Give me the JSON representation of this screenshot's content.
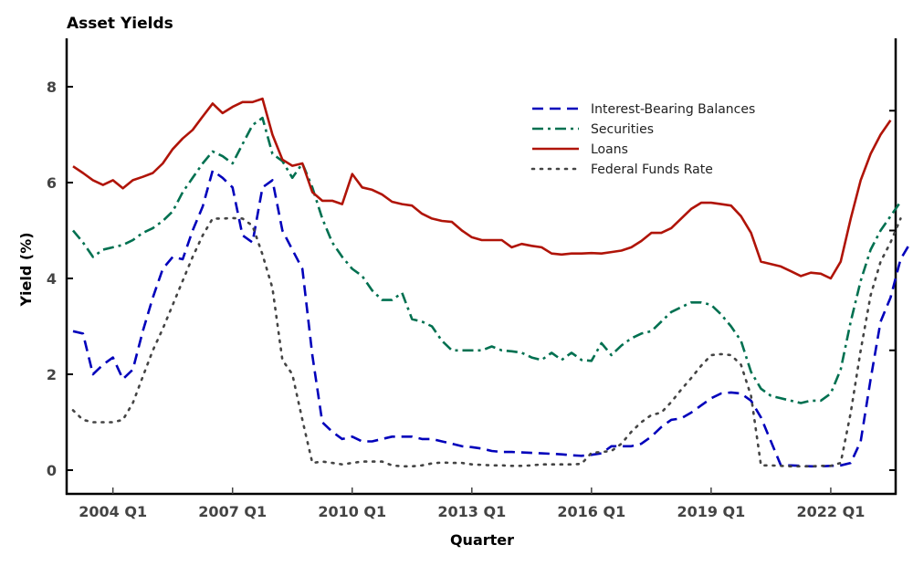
{
  "chart_data": {
    "type": "line",
    "title": "Asset Yields",
    "xlabel": "Quarter",
    "ylabel": "Yield (%)",
    "ylim": [
      -0.5,
      9
    ],
    "yticks": [
      0,
      2,
      4,
      6,
      8
    ],
    "right_axis_ticks": [
      0,
      2.5,
      5,
      7.5
    ],
    "x_start": "2003 Q1",
    "xtick_labels": [
      "2004 Q1",
      "2007 Q1",
      "2010 Q1",
      "2013 Q1",
      "2016 Q1",
      "2019 Q1",
      "2022 Q1"
    ],
    "xtick_index": [
      4,
      16,
      28,
      40,
      52,
      64,
      76
    ],
    "grid": false,
    "legend_position": "top-right",
    "series": [
      {
        "name": "Interest-Bearing Balances",
        "color": "#0000bb",
        "style": "dashed",
        "values": [
          2.9,
          2.85,
          2.0,
          2.2,
          2.35,
          1.9,
          2.1,
          2.9,
          3.6,
          4.2,
          4.45,
          4.4,
          5.0,
          5.5,
          6.25,
          6.1,
          5.9,
          4.9,
          4.75,
          5.9,
          6.05,
          5.0,
          4.6,
          4.2,
          2.4,
          1.0,
          0.8,
          0.65,
          0.7,
          0.6,
          0.6,
          0.65,
          0.7,
          0.7,
          0.7,
          0.65,
          0.65,
          0.6,
          0.55,
          0.5,
          0.48,
          0.45,
          0.4,
          0.38,
          0.38,
          0.37,
          0.36,
          0.35,
          0.34,
          0.33,
          0.31,
          0.3,
          0.32,
          0.35,
          0.5,
          0.5,
          0.5,
          0.55,
          0.7,
          0.9,
          1.05,
          1.08,
          1.2,
          1.35,
          1.5,
          1.6,
          1.62,
          1.6,
          1.45,
          1.1,
          0.6,
          0.1,
          0.1,
          0.09,
          0.08,
          0.08,
          0.09,
          0.1,
          0.15,
          0.6,
          1.9,
          3.1,
          3.6,
          4.4,
          4.75
        ]
      },
      {
        "name": "Securities",
        "color": "#007050",
        "style": "dashdot",
        "values": [
          5.0,
          4.75,
          4.45,
          4.6,
          4.65,
          4.7,
          4.8,
          4.95,
          5.05,
          5.2,
          5.4,
          5.8,
          6.1,
          6.4,
          6.65,
          6.55,
          6.4,
          6.8,
          7.2,
          7.35,
          6.6,
          6.45,
          6.1,
          6.4,
          5.9,
          5.25,
          4.75,
          4.45,
          4.2,
          4.05,
          3.75,
          3.55,
          3.55,
          3.7,
          3.15,
          3.1,
          3.0,
          2.7,
          2.5,
          2.5,
          2.5,
          2.5,
          2.58,
          2.5,
          2.48,
          2.45,
          2.35,
          2.3,
          2.45,
          2.3,
          2.45,
          2.3,
          2.28,
          2.65,
          2.4,
          2.6,
          2.75,
          2.85,
          2.9,
          3.1,
          3.3,
          3.4,
          3.5,
          3.5,
          3.45,
          3.25,
          3.0,
          2.7,
          2.05,
          1.7,
          1.55,
          1.5,
          1.45,
          1.4,
          1.45,
          1.45,
          1.6,
          2.1,
          3.1,
          3.95,
          4.6,
          5.0,
          5.3,
          5.6
        ]
      },
      {
        "name": "Loans",
        "color": "#b01408",
        "style": "solid",
        "values": [
          6.34,
          6.2,
          6.05,
          5.95,
          6.05,
          5.88,
          6.05,
          6.12,
          6.2,
          6.4,
          6.7,
          6.92,
          7.1,
          7.38,
          7.65,
          7.45,
          7.58,
          7.68,
          7.68,
          7.75,
          7.0,
          6.48,
          6.35,
          6.4,
          5.8,
          5.62,
          5.62,
          5.55,
          6.18,
          5.9,
          5.85,
          5.75,
          5.6,
          5.55,
          5.52,
          5.35,
          5.25,
          5.2,
          5.18,
          5.0,
          4.86,
          4.8,
          4.8,
          4.8,
          4.65,
          4.72,
          4.68,
          4.65,
          4.52,
          4.5,
          4.52,
          4.52,
          4.53,
          4.52,
          4.55,
          4.58,
          4.65,
          4.78,
          4.95,
          4.95,
          5.05,
          5.25,
          5.45,
          5.58,
          5.58,
          5.55,
          5.52,
          5.3,
          4.95,
          4.35,
          4.3,
          4.25,
          4.15,
          4.05,
          4.12,
          4.1,
          4.0,
          4.35,
          5.25,
          6.05,
          6.6,
          7.0,
          7.3
        ]
      },
      {
        "name": "Federal Funds Rate",
        "color": "#444444",
        "style": "dotted",
        "values": [
          1.25,
          1.05,
          1.0,
          1.0,
          1.0,
          1.05,
          1.4,
          1.95,
          2.5,
          2.95,
          3.45,
          3.95,
          4.45,
          4.9,
          5.25,
          5.25,
          5.26,
          5.25,
          5.1,
          4.5,
          3.8,
          2.3,
          2.0,
          1.05,
          0.15,
          0.18,
          0.15,
          0.12,
          0.15,
          0.18,
          0.18,
          0.18,
          0.1,
          0.08,
          0.08,
          0.1,
          0.14,
          0.16,
          0.15,
          0.15,
          0.12,
          0.11,
          0.1,
          0.1,
          0.09,
          0.09,
          0.1,
          0.12,
          0.12,
          0.12,
          0.12,
          0.13,
          0.36,
          0.38,
          0.4,
          0.55,
          0.8,
          1.0,
          1.15,
          1.2,
          1.42,
          1.68,
          1.92,
          2.18,
          2.4,
          2.42,
          2.4,
          2.2,
          1.55,
          0.1,
          0.1,
          0.09,
          0.08,
          0.08,
          0.08,
          0.09,
          0.09,
          0.15,
          1.2,
          2.5,
          3.65,
          4.35,
          4.75,
          5.25
        ]
      }
    ]
  }
}
